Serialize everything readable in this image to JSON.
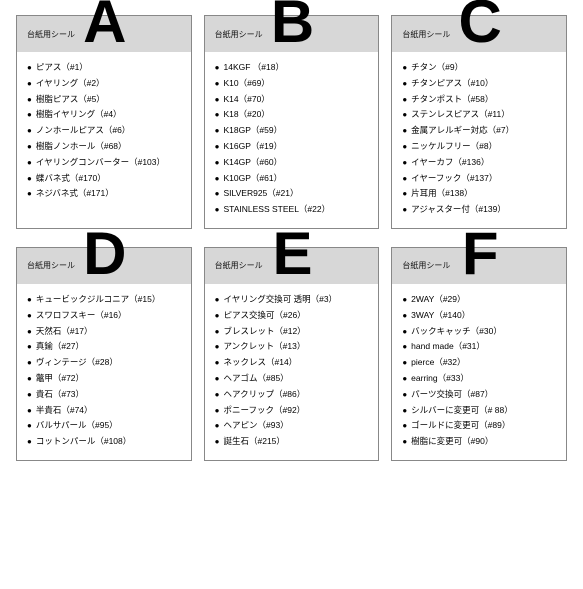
{
  "header_label": "台紙用シール",
  "cards": [
    {
      "letter": "A",
      "items": [
        "ピアス（#1）",
        "イヤリング（#2）",
        "樹脂ピアス（#5）",
        "樹脂イヤリング（#4）",
        "ノンホールピアス（#6）",
        "樹脂ノンホール（#68）",
        "イヤリングコンバーター（#103）",
        "蝶バネ式（#170）",
        "ネジバネ式（#171）"
      ]
    },
    {
      "letter": "B",
      "items": [
        "14KGF （#18）",
        "K10（#69）",
        "K14（#70）",
        "K18（#20）",
        "K18GP（#59）",
        "K16GP（#19）",
        "K14GP（#60）",
        "K10GP（#61）",
        "SILVER925（#21）",
        "STAINLESS STEEL（#22）"
      ]
    },
    {
      "letter": "C",
      "items": [
        "チタン（#9）",
        "チタンピアス（#10）",
        "チタンポスト（#58）",
        "ステンレスピアス（#11）",
        "金属アレルギー対応（#7）",
        "ニッケルフリー（#8）",
        "イヤーカフ（#136）",
        "イヤーフック（#137）",
        "片耳用（#138）",
        "アジャスター付（#139）"
      ]
    },
    {
      "letter": "D",
      "items": [
        "キュービックジルコニア（#15）",
        "スワロフスキー（#16）",
        "天然石（#17）",
        "真鍮（#27）",
        "ヴィンテージ（#28）",
        "鼈甲（#72）",
        "貴石（#73）",
        "半貴石（#74）",
        "バルサパール（#95）",
        "コットンパール（#108）"
      ]
    },
    {
      "letter": "E",
      "items": [
        "イヤリング交換可 透明（#3）",
        "ピアス交換可（#26）",
        "ブレスレット（#12）",
        "アンクレット（#13）",
        "ネックレス（#14）",
        "ヘアゴム（#85）",
        "ヘアクリップ（#86）",
        "ポニーフック（#92）",
        "ヘアピン（#93）",
        "誕生石（#215）"
      ]
    },
    {
      "letter": "F",
      "items": [
        "2WAY（#29）",
        "3WAY（#140）",
        "バックキャッチ（#30）",
        "hand made（#31）",
        "pierce（#32）",
        "earring（#33）",
        "パーツ交換可（#87）",
        "シルバーに変更可（# 88）",
        "ゴールドに変更可（#89）",
        "樹脂に変更可（#90）"
      ]
    }
  ]
}
